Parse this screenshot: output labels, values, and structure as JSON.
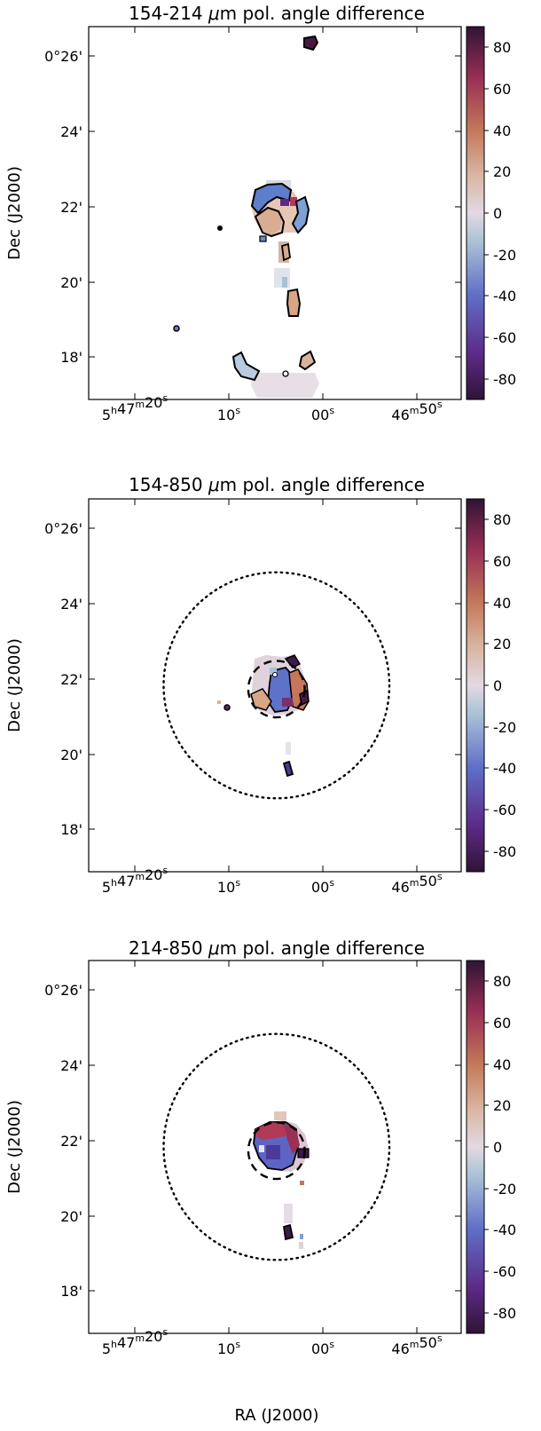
{
  "chart_data": [
    {
      "type": "heatmap",
      "title": "154-214 μm pol. angle difference",
      "title_parts": [
        "154-214 ",
        "μ",
        "m pol. angle difference"
      ],
      "ylabel": "Dec (J2000)",
      "xlabel": "",
      "x_ticks": [
        "5h47m20s",
        "10s",
        "00s",
        "46m50s"
      ],
      "y_ticks": [
        "0°26'",
        "24'",
        "22'",
        "20'",
        "18'"
      ],
      "colorbar": {
        "ticks": [
          80,
          60,
          40,
          20,
          0,
          -20,
          -40,
          -60,
          -80
        ],
        "range": [
          -90,
          90
        ],
        "colormap": "twilight_shifted"
      },
      "circles": []
    },
    {
      "type": "heatmap",
      "title": "154-850 μm pol. angle difference",
      "title_parts": [
        "154-850 ",
        "μ",
        "m pol. angle difference"
      ],
      "ylabel": "Dec (J2000)",
      "xlabel": "",
      "x_ticks": [
        "5h47m20s",
        "10s",
        "00s",
        "46m50s"
      ],
      "y_ticks": [
        "0°26'",
        "24'",
        "22'",
        "20'",
        "18'"
      ],
      "colorbar": {
        "ticks": [
          80,
          60,
          40,
          20,
          0,
          -20,
          -40,
          -60,
          -80
        ],
        "range": [
          -90,
          90
        ],
        "colormap": "twilight_shifted"
      },
      "circles": [
        {
          "style": "dashed",
          "center_ra_s": 5.0,
          "center_dec_arcmin": 21.75,
          "radius_arcmin": 0.75
        },
        {
          "style": "dotted",
          "center_ra_s": 5.0,
          "center_dec_arcmin": 21.85,
          "radius_arcmin": 3.0
        }
      ]
    },
    {
      "type": "heatmap",
      "title": "214-850 μm pol. angle difference",
      "title_parts": [
        "214-850 ",
        "μ",
        "m pol. angle difference"
      ],
      "ylabel": "Dec (J2000)",
      "xlabel": "RA (J2000)",
      "x_ticks": [
        "5h47m20s",
        "10s",
        "00s",
        "46m50s"
      ],
      "y_ticks": [
        "0°26'",
        "24'",
        "22'",
        "20'",
        "18'"
      ],
      "colorbar": {
        "ticks": [
          80,
          60,
          40,
          20,
          0,
          -20,
          -40,
          -60,
          -80
        ],
        "range": [
          -90,
          90
        ],
        "colormap": "twilight_shifted"
      },
      "circles": [
        {
          "style": "dashed",
          "center_ra_s": 5.0,
          "center_dec_arcmin": 21.75,
          "radius_arcmin": 0.75
        },
        {
          "style": "dotted",
          "center_ra_s": 5.0,
          "center_dec_arcmin": 21.85,
          "radius_arcmin": 3.0
        }
      ]
    }
  ]
}
